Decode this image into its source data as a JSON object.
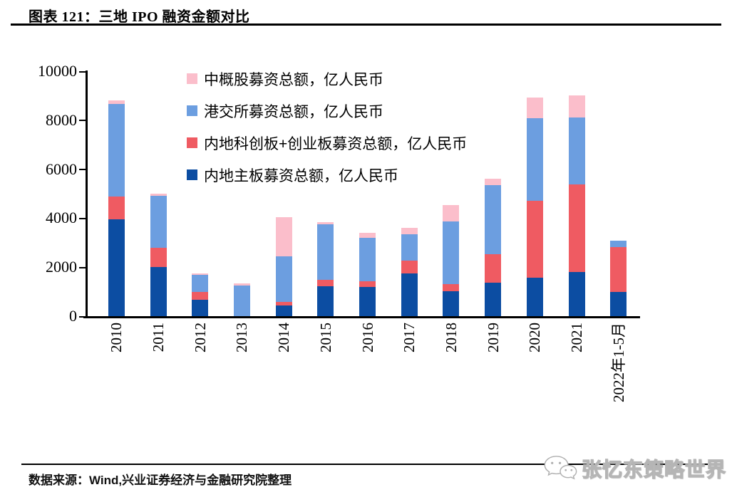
{
  "page": {
    "title": "图表 121：三地 IPO 融资金额对比",
    "source_note": "数据来源：Wind,兴业证券经济与金融研究院整理",
    "watermark": {
      "icon": "wechat-icon",
      "text": "张忆东策略世界"
    }
  },
  "chart_data": {
    "type": "bar",
    "stacked": true,
    "title": "三地 IPO 融资金额对比",
    "unit": "亿人民币",
    "categories": [
      "2010",
      "2011",
      "2012",
      "2013",
      "2014",
      "2015",
      "2016",
      "2017",
      "2018",
      "2019",
      "2020",
      "2021",
      "2022年1-5月"
    ],
    "series": [
      {
        "name": "内地主板募资总额，亿人民币",
        "color": "#0C4DA2",
        "values": [
          3940,
          2010,
          660,
          0,
          450,
          1220,
          1190,
          1750,
          1025,
          1375,
          1570,
          1815,
          975
        ]
      },
      {
        "name": "内地科创板+创业板募资总额，亿人民币",
        "color": "#EF5B62",
        "values": [
          940,
          780,
          320,
          0,
          140,
          270,
          245,
          515,
          285,
          1140,
          3145,
          3550,
          1855
        ]
      },
      {
        "name": "港交所募资总额，亿人民币",
        "color": "#6C9EE0",
        "values": [
          3790,
          2130,
          700,
          1260,
          1860,
          2270,
          1755,
          1075,
          2565,
          2830,
          3365,
          2735,
          245
        ]
      },
      {
        "name": "中概股募资总额，亿人民币",
        "color": "#FBBECB",
        "values": [
          150,
          90,
          60,
          75,
          1600,
          70,
          200,
          265,
          655,
          275,
          830,
          925,
          0
        ]
      }
    ],
    "totals": [
      8820,
      5010,
      1740,
      1335,
      4050,
      3830,
      3390,
      3605,
      4530,
      5620,
      8910,
      9025,
      3075
    ],
    "ylim": [
      0,
      10000
    ],
    "yticks": [
      0,
      2000,
      4000,
      6000,
      8000,
      10000
    ],
    "grid": false,
    "legend_position": "top-left-inside",
    "legend_order_top_to_bottom": [
      "中概股募资总额，亿人民币",
      "港交所募资总额，亿人民币",
      "内地科创板+创业板募资总额，亿人民币",
      "内地主板募资总额，亿人民币"
    ]
  }
}
